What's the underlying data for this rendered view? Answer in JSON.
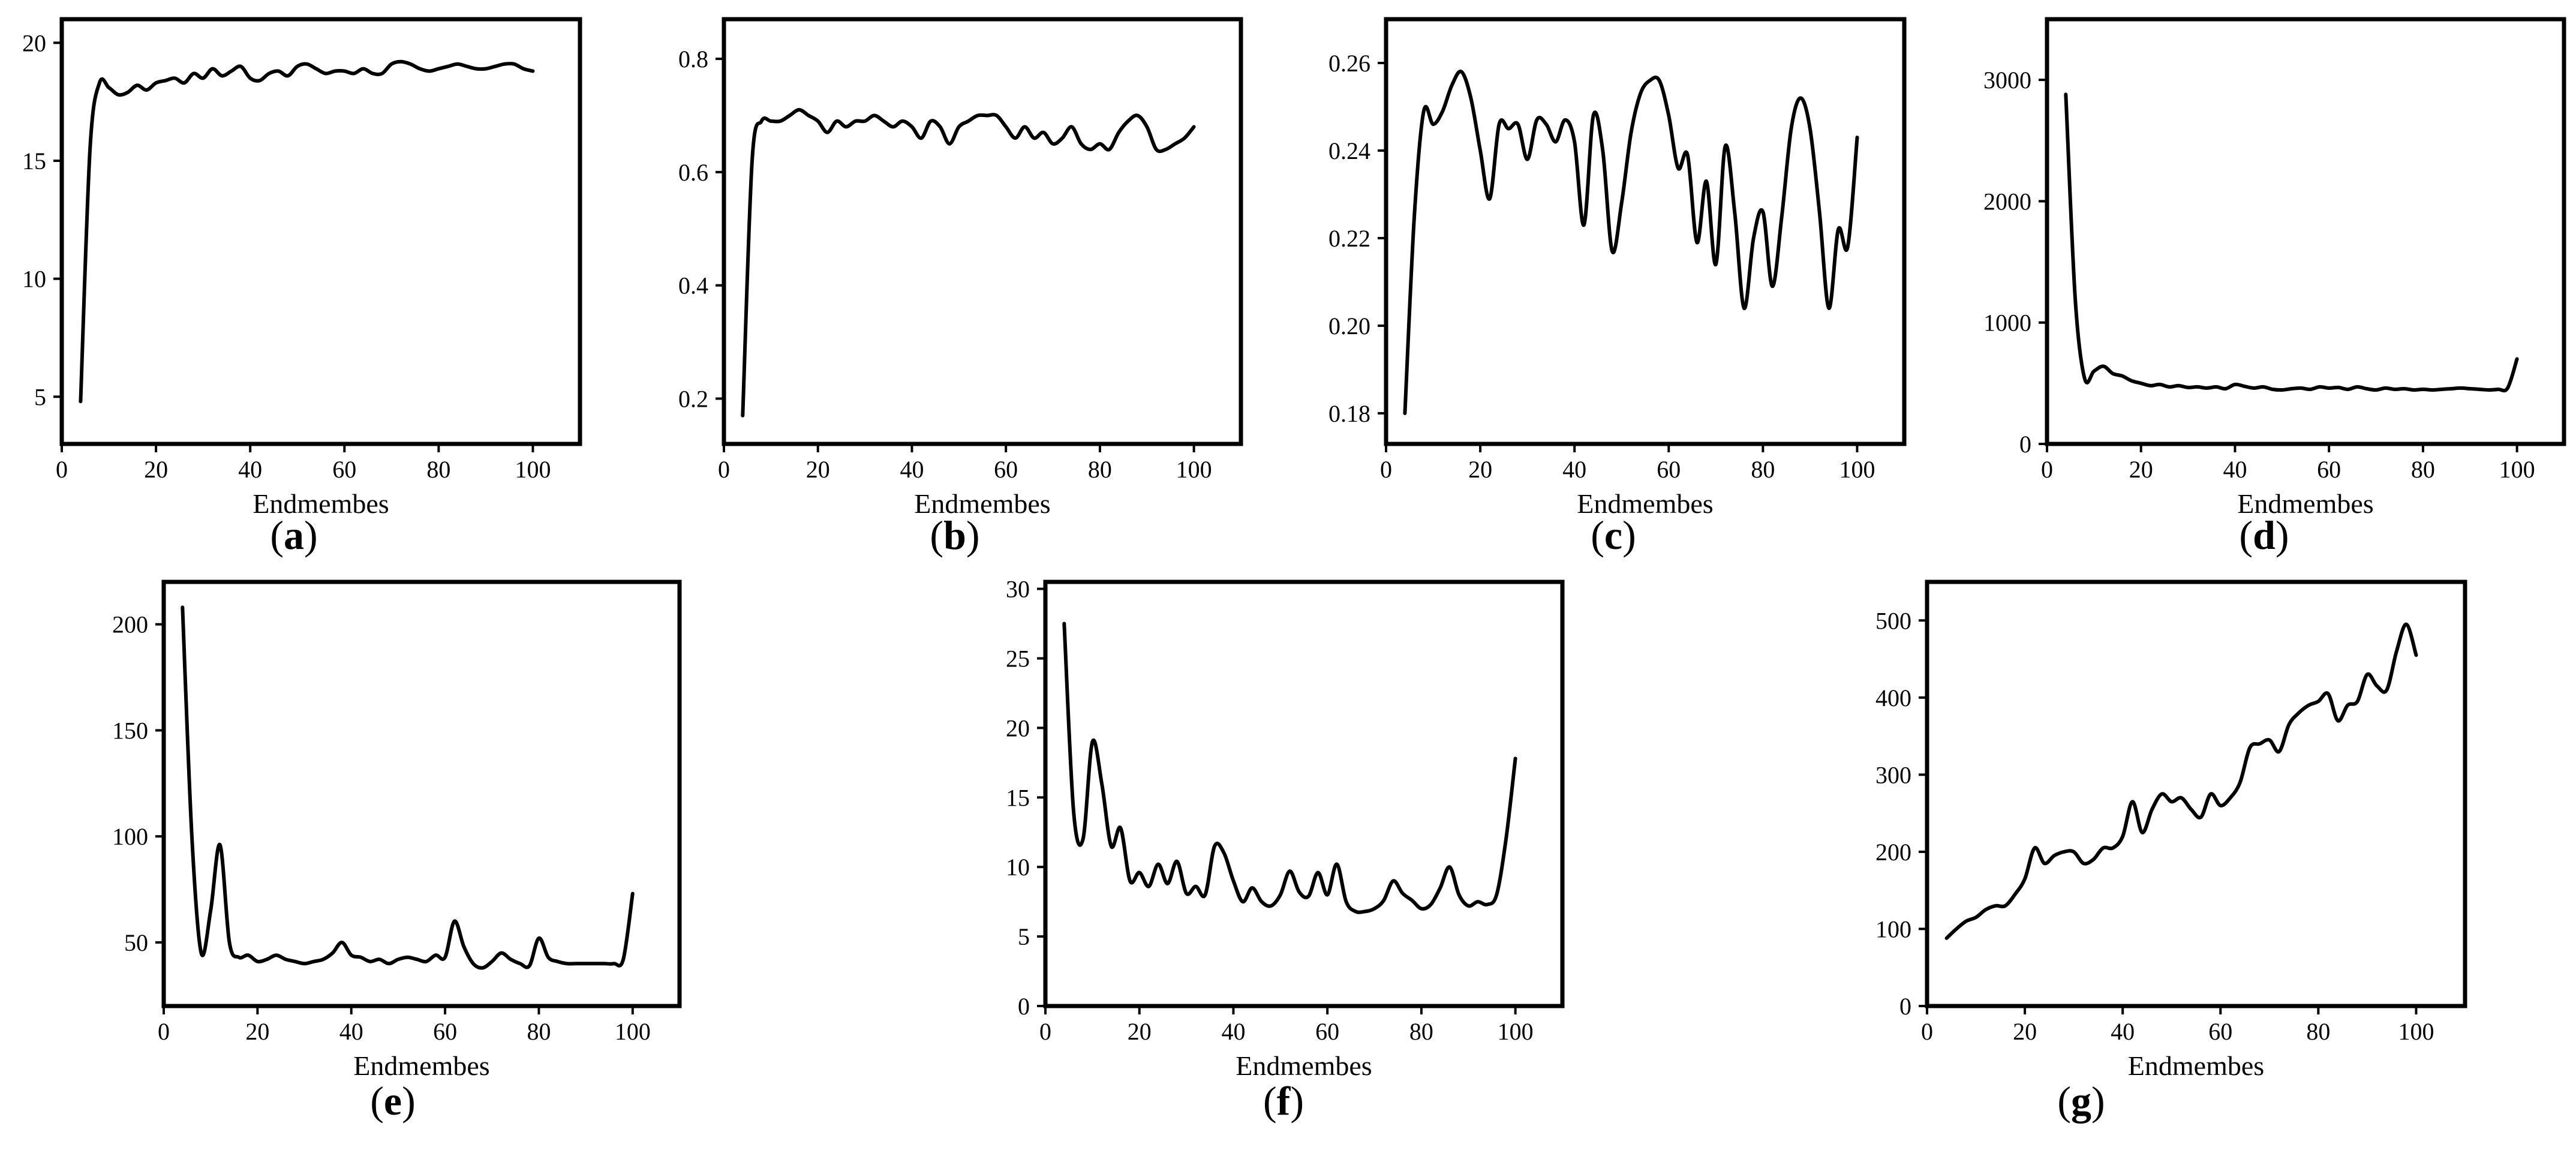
{
  "chart_data": [
    {
      "panel": "a",
      "type": "line",
      "xlabel": "Endmembes",
      "xlim": [
        0,
        110
      ],
      "ylim": [
        3,
        21
      ],
      "xticks": [
        "0",
        "20",
        "40",
        "60",
        "80",
        "100"
      ],
      "yticks": [
        "5",
        "10",
        "15",
        "20"
      ],
      "series": [
        {
          "x": [
            4,
            6,
            8,
            10,
            12,
            14,
            16,
            18,
            20,
            22,
            24,
            26,
            28,
            30,
            32,
            34,
            36,
            38,
            40,
            42,
            44,
            46,
            48,
            50,
            52,
            54,
            56,
            58,
            60,
            62,
            64,
            66,
            68,
            70,
            72,
            74,
            76,
            78,
            80,
            82,
            84,
            86,
            88,
            90,
            92,
            94,
            96,
            98,
            100
          ],
          "y": [
            4.8,
            15.5,
            18.3,
            18.1,
            17.8,
            17.9,
            18.2,
            18.0,
            18.3,
            18.4,
            18.5,
            18.3,
            18.7,
            18.5,
            18.9,
            18.6,
            18.8,
            19.0,
            18.5,
            18.4,
            18.7,
            18.8,
            18.6,
            19.0,
            19.1,
            18.9,
            18.7,
            18.8,
            18.8,
            18.7,
            18.9,
            18.7,
            18.7,
            19.1,
            19.2,
            19.1,
            18.9,
            18.8,
            18.9,
            19.0,
            19.1,
            19.0,
            18.9,
            18.9,
            19.0,
            19.1,
            19.1,
            18.9,
            18.8
          ]
        }
      ]
    },
    {
      "panel": "b",
      "type": "line",
      "xlabel": "Endmembes",
      "xlim": [
        0,
        110
      ],
      "ylim": [
        0.12,
        0.87
      ],
      "xticks": [
        "0",
        "20",
        "40",
        "60",
        "80",
        "100"
      ],
      "yticks": [
        "0.2",
        "0.4",
        "0.6",
        "0.8"
      ],
      "series": [
        {
          "x": [
            4,
            6,
            8,
            10,
            12,
            14,
            16,
            18,
            20,
            22,
            24,
            26,
            28,
            30,
            32,
            34,
            36,
            38,
            40,
            42,
            44,
            46,
            48,
            50,
            52,
            54,
            56,
            58,
            60,
            62,
            64,
            66,
            68,
            70,
            72,
            74,
            76,
            78,
            80,
            82,
            84,
            86,
            88,
            90,
            92,
            94,
            96,
            98,
            100
          ],
          "y": [
            0.17,
            0.62,
            0.69,
            0.69,
            0.69,
            0.7,
            0.71,
            0.7,
            0.69,
            0.67,
            0.69,
            0.68,
            0.69,
            0.69,
            0.7,
            0.69,
            0.68,
            0.69,
            0.68,
            0.66,
            0.69,
            0.68,
            0.65,
            0.68,
            0.69,
            0.7,
            0.7,
            0.7,
            0.68,
            0.66,
            0.68,
            0.66,
            0.67,
            0.65,
            0.66,
            0.68,
            0.65,
            0.64,
            0.65,
            0.64,
            0.67,
            0.69,
            0.7,
            0.68,
            0.64,
            0.64,
            0.65,
            0.66,
            0.68
          ]
        }
      ]
    },
    {
      "panel": "c",
      "type": "line",
      "xlabel": "Endmembes",
      "xlim": [
        0,
        110
      ],
      "ylim": [
        0.173,
        0.27
      ],
      "xticks": [
        "0",
        "20",
        "40",
        "60",
        "80",
        "100"
      ],
      "yticks": [
        "0.18",
        "0.20",
        "0.22",
        "0.24",
        "0.26"
      ],
      "series": [
        {
          "x": [
            4,
            6,
            8,
            10,
            12,
            14,
            16,
            18,
            20,
            22,
            24,
            26,
            28,
            30,
            32,
            34,
            36,
            38,
            40,
            42,
            44,
            46,
            48,
            50,
            52,
            54,
            56,
            58,
            60,
            62,
            64,
            66,
            68,
            70,
            72,
            74,
            76,
            78,
            80,
            82,
            84,
            86,
            88,
            90,
            92,
            94,
            96,
            98,
            100
          ],
          "y": [
            0.18,
            0.225,
            0.249,
            0.246,
            0.249,
            0.255,
            0.258,
            0.252,
            0.24,
            0.229,
            0.246,
            0.245,
            0.246,
            0.238,
            0.247,
            0.246,
            0.242,
            0.247,
            0.242,
            0.223,
            0.248,
            0.24,
            0.217,
            0.228,
            0.244,
            0.253,
            0.256,
            0.256,
            0.248,
            0.236,
            0.239,
            0.219,
            0.233,
            0.214,
            0.241,
            0.226,
            0.204,
            0.22,
            0.226,
            0.209,
            0.225,
            0.245,
            0.252,
            0.245,
            0.226,
            0.204,
            0.222,
            0.218,
            0.243
          ]
        }
      ]
    },
    {
      "panel": "d",
      "type": "line",
      "xlabel": "Endmembes",
      "xlim": [
        0,
        110
      ],
      "ylim": [
        0,
        3500
      ],
      "xticks": [
        "0",
        "20",
        "40",
        "60",
        "80",
        "100"
      ],
      "yticks": [
        "0",
        "1000",
        "2000",
        "3000"
      ],
      "series": [
        {
          "x": [
            4,
            6,
            8,
            10,
            12,
            14,
            16,
            18,
            20,
            22,
            24,
            26,
            28,
            30,
            32,
            34,
            36,
            38,
            40,
            42,
            44,
            46,
            48,
            50,
            52,
            54,
            56,
            58,
            60,
            62,
            64,
            66,
            68,
            70,
            72,
            74,
            76,
            78,
            80,
            82,
            84,
            86,
            88,
            90,
            92,
            94,
            96,
            98,
            100
          ],
          "y": [
            2880,
            1200,
            540,
            600,
            640,
            580,
            560,
            520,
            500,
            480,
            490,
            470,
            480,
            465,
            470,
            460,
            470,
            455,
            490,
            475,
            460,
            470,
            450,
            445,
            455,
            460,
            450,
            470,
            460,
            465,
            450,
            470,
            455,
            445,
            460,
            450,
            455,
            445,
            450,
            445,
            450,
            455,
            460,
            455,
            450,
            445,
            450,
            460,
            700
          ]
        }
      ]
    },
    {
      "panel": "e",
      "type": "line",
      "xlabel": "Endmembes",
      "xlim": [
        0,
        110
      ],
      "ylim": [
        20,
        220
      ],
      "xticks": [
        "0",
        "20",
        "40",
        "60",
        "80",
        "100"
      ],
      "yticks": [
        "50",
        "100",
        "150",
        "200"
      ],
      "series": [
        {
          "x": [
            4,
            6,
            8,
            10,
            12,
            14,
            16,
            18,
            20,
            22,
            24,
            26,
            28,
            30,
            32,
            34,
            36,
            38,
            40,
            42,
            44,
            46,
            48,
            50,
            52,
            54,
            56,
            58,
            60,
            62,
            64,
            66,
            68,
            70,
            72,
            74,
            76,
            78,
            80,
            82,
            84,
            86,
            88,
            90,
            92,
            94,
            96,
            98,
            100
          ],
          "y": [
            208,
            100,
            45,
            65,
            96,
            50,
            43,
            44,
            41,
            42,
            44,
            42,
            41,
            40,
            41,
            42,
            45,
            50,
            44,
            43,
            41,
            42,
            40,
            42,
            43,
            42,
            41,
            44,
            43,
            60,
            48,
            40,
            38,
            41,
            45,
            42,
            40,
            39,
            52,
            43,
            41,
            40,
            40,
            40,
            40,
            40,
            40,
            42,
            73
          ]
        }
      ]
    },
    {
      "panel": "f",
      "type": "line",
      "xlabel": "Endmembes",
      "xlim": [
        0,
        110
      ],
      "ylim": [
        0,
        30.5
      ],
      "xticks": [
        "0",
        "20",
        "40",
        "60",
        "80",
        "100"
      ],
      "yticks": [
        "0",
        "5",
        "10",
        "15",
        "20",
        "25",
        "30"
      ],
      "series": [
        {
          "x": [
            4,
            6,
            8,
            10,
            12,
            14,
            16,
            18,
            20,
            22,
            24,
            26,
            28,
            30,
            32,
            34,
            36,
            38,
            40,
            42,
            44,
            46,
            48,
            50,
            52,
            54,
            56,
            58,
            60,
            62,
            64,
            66,
            68,
            70,
            72,
            74,
            76,
            78,
            80,
            82,
            84,
            86,
            88,
            90,
            92,
            94,
            96,
            98,
            100
          ],
          "y": [
            27.5,
            14.0,
            12.0,
            19.0,
            16.0,
            11.5,
            12.8,
            9.0,
            9.6,
            8.6,
            10.2,
            8.8,
            10.4,
            8.1,
            8.6,
            8.0,
            11.5,
            11.0,
            9.0,
            7.5,
            8.5,
            7.5,
            7.2,
            8.0,
            9.7,
            8.2,
            7.9,
            9.6,
            8.0,
            10.2,
            7.5,
            6.8,
            6.8,
            7.0,
            7.6,
            9.0,
            8.1,
            7.6,
            7.0,
            7.3,
            8.5,
            10.0,
            8.0,
            7.2,
            7.5,
            7.3,
            8.0,
            12.0,
            17.8
          ]
        }
      ]
    },
    {
      "panel": "g",
      "type": "line",
      "xlabel": "Endmembes",
      "xlim": [
        0,
        110
      ],
      "ylim": [
        0,
        550
      ],
      "xticks": [
        "0",
        "20",
        "40",
        "60",
        "80",
        "100"
      ],
      "yticks": [
        "0",
        "100",
        "200",
        "300",
        "400",
        "500"
      ],
      "series": [
        {
          "x": [
            4,
            6,
            8,
            10,
            12,
            14,
            16,
            18,
            20,
            22,
            24,
            26,
            28,
            30,
            32,
            34,
            36,
            38,
            40,
            42,
            44,
            46,
            48,
            50,
            52,
            54,
            56,
            58,
            60,
            62,
            64,
            66,
            68,
            70,
            72,
            74,
            76,
            78,
            80,
            82,
            84,
            86,
            88,
            90,
            92,
            94,
            96,
            98,
            100
          ],
          "y": [
            88,
            100,
            110,
            115,
            125,
            130,
            130,
            145,
            165,
            205,
            185,
            195,
            200,
            200,
            185,
            190,
            205,
            205,
            220,
            265,
            225,
            255,
            275,
            265,
            270,
            255,
            245,
            275,
            260,
            270,
            290,
            335,
            340,
            345,
            330,
            365,
            380,
            390,
            395,
            405,
            370,
            390,
            395,
            430,
            415,
            410,
            460,
            495,
            455
          ]
        }
      ]
    }
  ],
  "panel_labels": [
    "(a)",
    "(b)",
    "(c)",
    "(d)",
    "(e)",
    "(f)",
    "(g)"
  ]
}
